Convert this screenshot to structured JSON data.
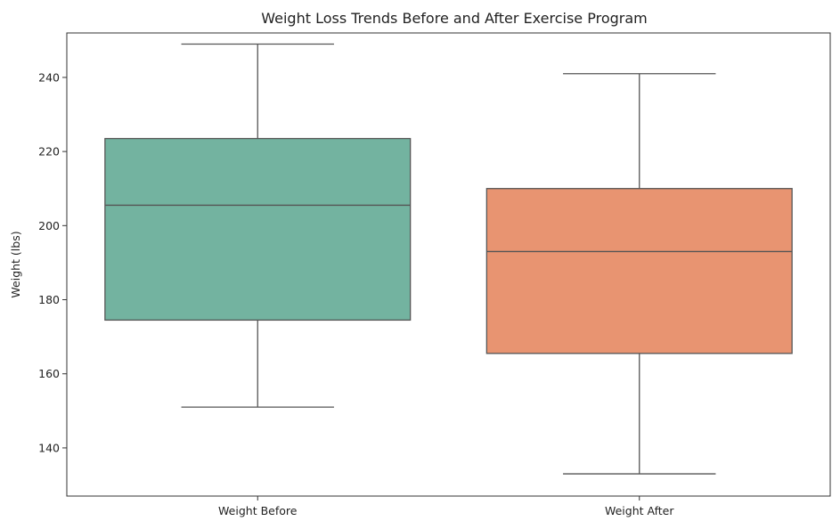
{
  "chart_data": {
    "type": "box",
    "title": "Weight Loss Trends Before and After Exercise Program",
    "xlabel": "",
    "ylabel": "Weight (lbs)",
    "ylim": [
      127,
      252
    ],
    "yticks": [
      140,
      160,
      180,
      200,
      220,
      240
    ],
    "grid": false,
    "categories": [
      "Weight Before",
      "Weight After"
    ],
    "boxes": [
      {
        "category": "Weight Before",
        "whisker_low": 151,
        "q1": 174.5,
        "median": 205.5,
        "q3": 223.5,
        "whisker_high": 249,
        "color": "#73b3a0"
      },
      {
        "category": "Weight After",
        "whisker_low": 133,
        "q1": 165.5,
        "median": 193,
        "q3": 210,
        "whisker_high": 241,
        "color": "#e89471"
      }
    ],
    "line_color": "#555555"
  }
}
